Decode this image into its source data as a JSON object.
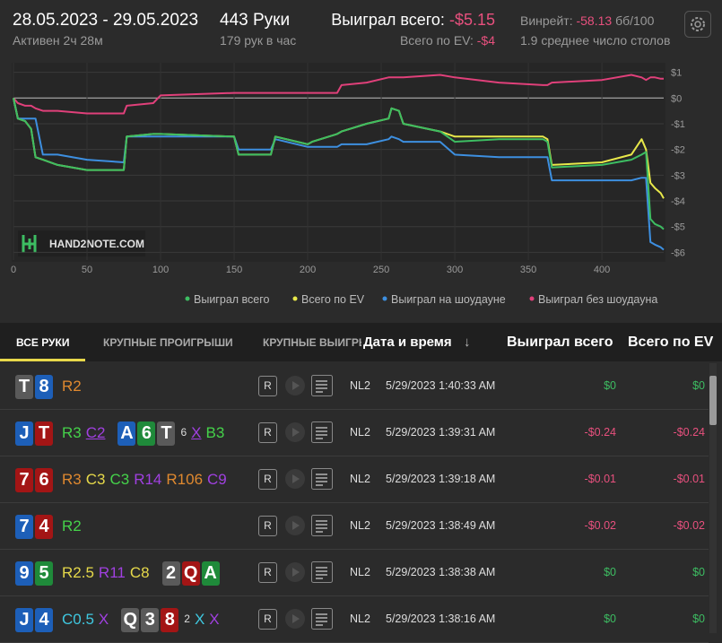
{
  "header": {
    "dates": "28.05.2023 - 29.05.2023",
    "active": "Активен 2ч 28м",
    "hands": "443 Руки",
    "hands_per_hour": "179 рук в час",
    "won_label": "Выиграл всего:",
    "won_value": "-$5.15",
    "ev_label": "Всего по EV:",
    "ev_value": "-$4",
    "winrate_label": "Винрейт:",
    "winrate_value": "-58.13",
    "winrate_unit": "бб/100",
    "tables": "1.9 среднее число столов"
  },
  "chart_data": {
    "type": "line",
    "watermark": "HAND2NOTE.COM",
    "x": [
      0,
      3,
      8,
      12,
      15,
      20,
      30,
      50,
      75,
      77,
      95,
      100,
      150,
      153,
      175,
      178,
      200,
      203,
      220,
      223,
      240,
      255,
      257,
      262,
      265,
      290,
      300,
      330,
      360,
      363,
      366,
      400,
      420,
      427,
      430,
      433,
      436,
      440,
      442
    ],
    "xlim": [
      0,
      442
    ],
    "xticks": [
      0,
      50,
      100,
      150,
      200,
      250,
      300,
      350,
      400
    ],
    "ylim": [
      -6.3,
      1.3
    ],
    "yticks": [
      {
        "value": 1,
        "label": "$1"
      },
      {
        "value": 0,
        "label": "$0"
      },
      {
        "value": -1,
        "label": "-$1"
      },
      {
        "value": -2,
        "label": "-$2"
      },
      {
        "value": -3,
        "label": "-$3"
      },
      {
        "value": -4,
        "label": "-$4"
      },
      {
        "value": -5,
        "label": "-$5"
      },
      {
        "value": -6,
        "label": "-$6"
      }
    ],
    "grid": true,
    "series": [
      {
        "name": "Выиграл без шоудауна",
        "color": "#e0407a",
        "values": [
          0,
          -0.2,
          -0.3,
          -0.3,
          -0.4,
          -0.5,
          -0.5,
          -0.6,
          -0.6,
          -0.3,
          -0.2,
          0.1,
          0.2,
          0.2,
          0.2,
          0.2,
          0.2,
          0.2,
          0.2,
          0.5,
          0.6,
          0.8,
          0.8,
          0.8,
          0.8,
          0.9,
          0.8,
          0.6,
          0.5,
          0.5,
          0.6,
          0.7,
          0.9,
          0.8,
          0.7,
          0.8,
          0.8,
          0.75,
          0.75
        ]
      },
      {
        "name": "Выиграл на шоудауне",
        "color": "#3d8fe0",
        "values": [
          0,
          -0.8,
          -0.8,
          -0.8,
          -0.8,
          -2.2,
          -2.2,
          -2.4,
          -2.5,
          -1.5,
          -1.5,
          -1.5,
          -1.5,
          -2.0,
          -2.0,
          -1.6,
          -1.9,
          -1.9,
          -1.9,
          -1.8,
          -1.8,
          -1.6,
          -1.5,
          -1.6,
          -1.7,
          -1.7,
          -2.2,
          -2.3,
          -2.3,
          -2.3,
          -3.2,
          -3.2,
          -3.2,
          -3.1,
          -3.1,
          -5.6,
          -5.7,
          -5.8,
          -5.9
        ]
      },
      {
        "name": "Всего по EV",
        "color": "#e8e84a",
        "values": [
          0,
          -0.8,
          -0.9,
          -1.2,
          -2.3,
          -2.4,
          -2.6,
          -2.8,
          -2.8,
          -1.5,
          -1.4,
          -1.4,
          -1.5,
          -2.2,
          -2.2,
          -1.5,
          -1.8,
          -1.7,
          -1.4,
          -1.3,
          -1.0,
          -0.8,
          -0.4,
          -0.5,
          -1.0,
          -1.3,
          -1.5,
          -1.5,
          -1.5,
          -1.6,
          -2.6,
          -2.5,
          -2.2,
          -1.6,
          -2.0,
          -3.3,
          -3.5,
          -3.7,
          -3.9
        ]
      },
      {
        "name": "Выиграл всего",
        "color": "#3dbd62",
        "values": [
          0,
          -0.8,
          -0.9,
          -1.2,
          -2.3,
          -2.4,
          -2.6,
          -2.8,
          -2.8,
          -1.5,
          -1.4,
          -1.4,
          -1.5,
          -2.2,
          -2.2,
          -1.5,
          -1.8,
          -1.7,
          -1.4,
          -1.3,
          -1.0,
          -0.8,
          -0.4,
          -0.5,
          -1.0,
          -1.3,
          -1.7,
          -1.6,
          -1.6,
          -1.7,
          -2.7,
          -2.6,
          -2.4,
          -2.2,
          -2.1,
          -4.7,
          -4.9,
          -5.0,
          -5.1
        ]
      }
    ],
    "legend_order": [
      3,
      2,
      1,
      0
    ]
  },
  "tabs": [
    "ВСЕ РУКИ",
    "КРУПНЫЕ ПРОИГРЫШИ",
    "КРУПНЫЕ ВЫИГРЫШИ"
  ],
  "table": {
    "columns": {
      "date": "Дата и время",
      "sort": "↓",
      "won": "Выиграл всего",
      "ev": "Всего по EV"
    },
    "button_label": "R",
    "rows": [
      {
        "hole": [
          {
            "rank": "T",
            "color": "#5a5a5a"
          },
          {
            "rank": "8",
            "color": "#1d5fb8"
          }
        ],
        "line": [
          {
            "text": "R2",
            "color": "#e0892f"
          }
        ],
        "limit": "NL2",
        "date": "5/29/2023 1:40:33 AM",
        "won": "$0",
        "ev": "$0"
      },
      {
        "hole": [
          {
            "rank": "J",
            "color": "#1d5fb8"
          },
          {
            "rank": "T",
            "color": "#a31515"
          }
        ],
        "line": [
          {
            "text": "R3",
            "color": "#45d24a"
          },
          {
            "text": "C2",
            "color": "#a040e0",
            "underline": true
          },
          {
            "rank": "A",
            "color": "#1d5fb8"
          },
          {
            "rank": "6",
            "color": "#1f8a3a"
          },
          {
            "rank": "T",
            "color": "#5a5a5a"
          },
          {
            "text": "6",
            "color": "#dddddd",
            "small": true
          },
          {
            "text": "X",
            "color": "#a040e0",
            "underline": true
          },
          {
            "text": "B3",
            "color": "#45d24a"
          }
        ],
        "limit": "NL2",
        "date": "5/29/2023 1:39:31 AM",
        "won": "-$0.24",
        "ev": "-$0.24"
      },
      {
        "hole": [
          {
            "rank": "7",
            "color": "#a31515"
          },
          {
            "rank": "6",
            "color": "#a31515"
          }
        ],
        "line": [
          {
            "text": "R3",
            "color": "#e0892f"
          },
          {
            "text": "C3",
            "color": "#e6d94a"
          },
          {
            "text": "C3",
            "color": "#45d24a"
          },
          {
            "text": "R14",
            "color": "#a040e0"
          },
          {
            "text": "R106",
            "color": "#e0892f"
          },
          {
            "text": "C9",
            "color": "#a040e0"
          }
        ],
        "limit": "NL2",
        "date": "5/29/2023 1:39:18 AM",
        "won": "-$0.01",
        "ev": "-$0.01"
      },
      {
        "hole": [
          {
            "rank": "7",
            "color": "#1d5fb8"
          },
          {
            "rank": "4",
            "color": "#a31515"
          }
        ],
        "line": [
          {
            "text": "R2",
            "color": "#45d24a"
          }
        ],
        "limit": "NL2",
        "date": "5/29/2023 1:38:49 AM",
        "won": "-$0.02",
        "ev": "-$0.02"
      },
      {
        "hole": [
          {
            "rank": "9",
            "color": "#1d5fb8"
          },
          {
            "rank": "5",
            "color": "#1f8a3a"
          }
        ],
        "line": [
          {
            "text": "R2.5",
            "color": "#e6d94a"
          },
          {
            "text": "R11",
            "color": "#a040e0"
          },
          {
            "text": "C8",
            "color": "#e6d94a"
          },
          {
            "rank": "2",
            "color": "#5a5a5a"
          },
          {
            "rank": "Q",
            "color": "#a31515"
          },
          {
            "rank": "A",
            "color": "#1f8a3a"
          }
        ],
        "limit": "NL2",
        "date": "5/29/2023 1:38:38 AM",
        "won": "$0",
        "ev": "$0"
      },
      {
        "hole": [
          {
            "rank": "J",
            "color": "#1d5fb8"
          },
          {
            "rank": "4",
            "color": "#1d5fb8"
          }
        ],
        "line": [
          {
            "text": "C0.5",
            "color": "#3fc8e0"
          },
          {
            "text": "X",
            "color": "#a040e0"
          },
          {
            "rank": "Q",
            "color": "#5a5a5a"
          },
          {
            "rank": "3",
            "color": "#5a5a5a"
          },
          {
            "rank": "8",
            "color": "#a31515"
          },
          {
            "text": "2",
            "color": "#dddddd",
            "small": true
          },
          {
            "text": "X",
            "color": "#3fc8e0"
          },
          {
            "text": "X",
            "color": "#a040e0"
          }
        ],
        "limit": "NL2",
        "date": "5/29/2023 1:38:16 AM",
        "won": "$0",
        "ev": "$0"
      }
    ]
  }
}
